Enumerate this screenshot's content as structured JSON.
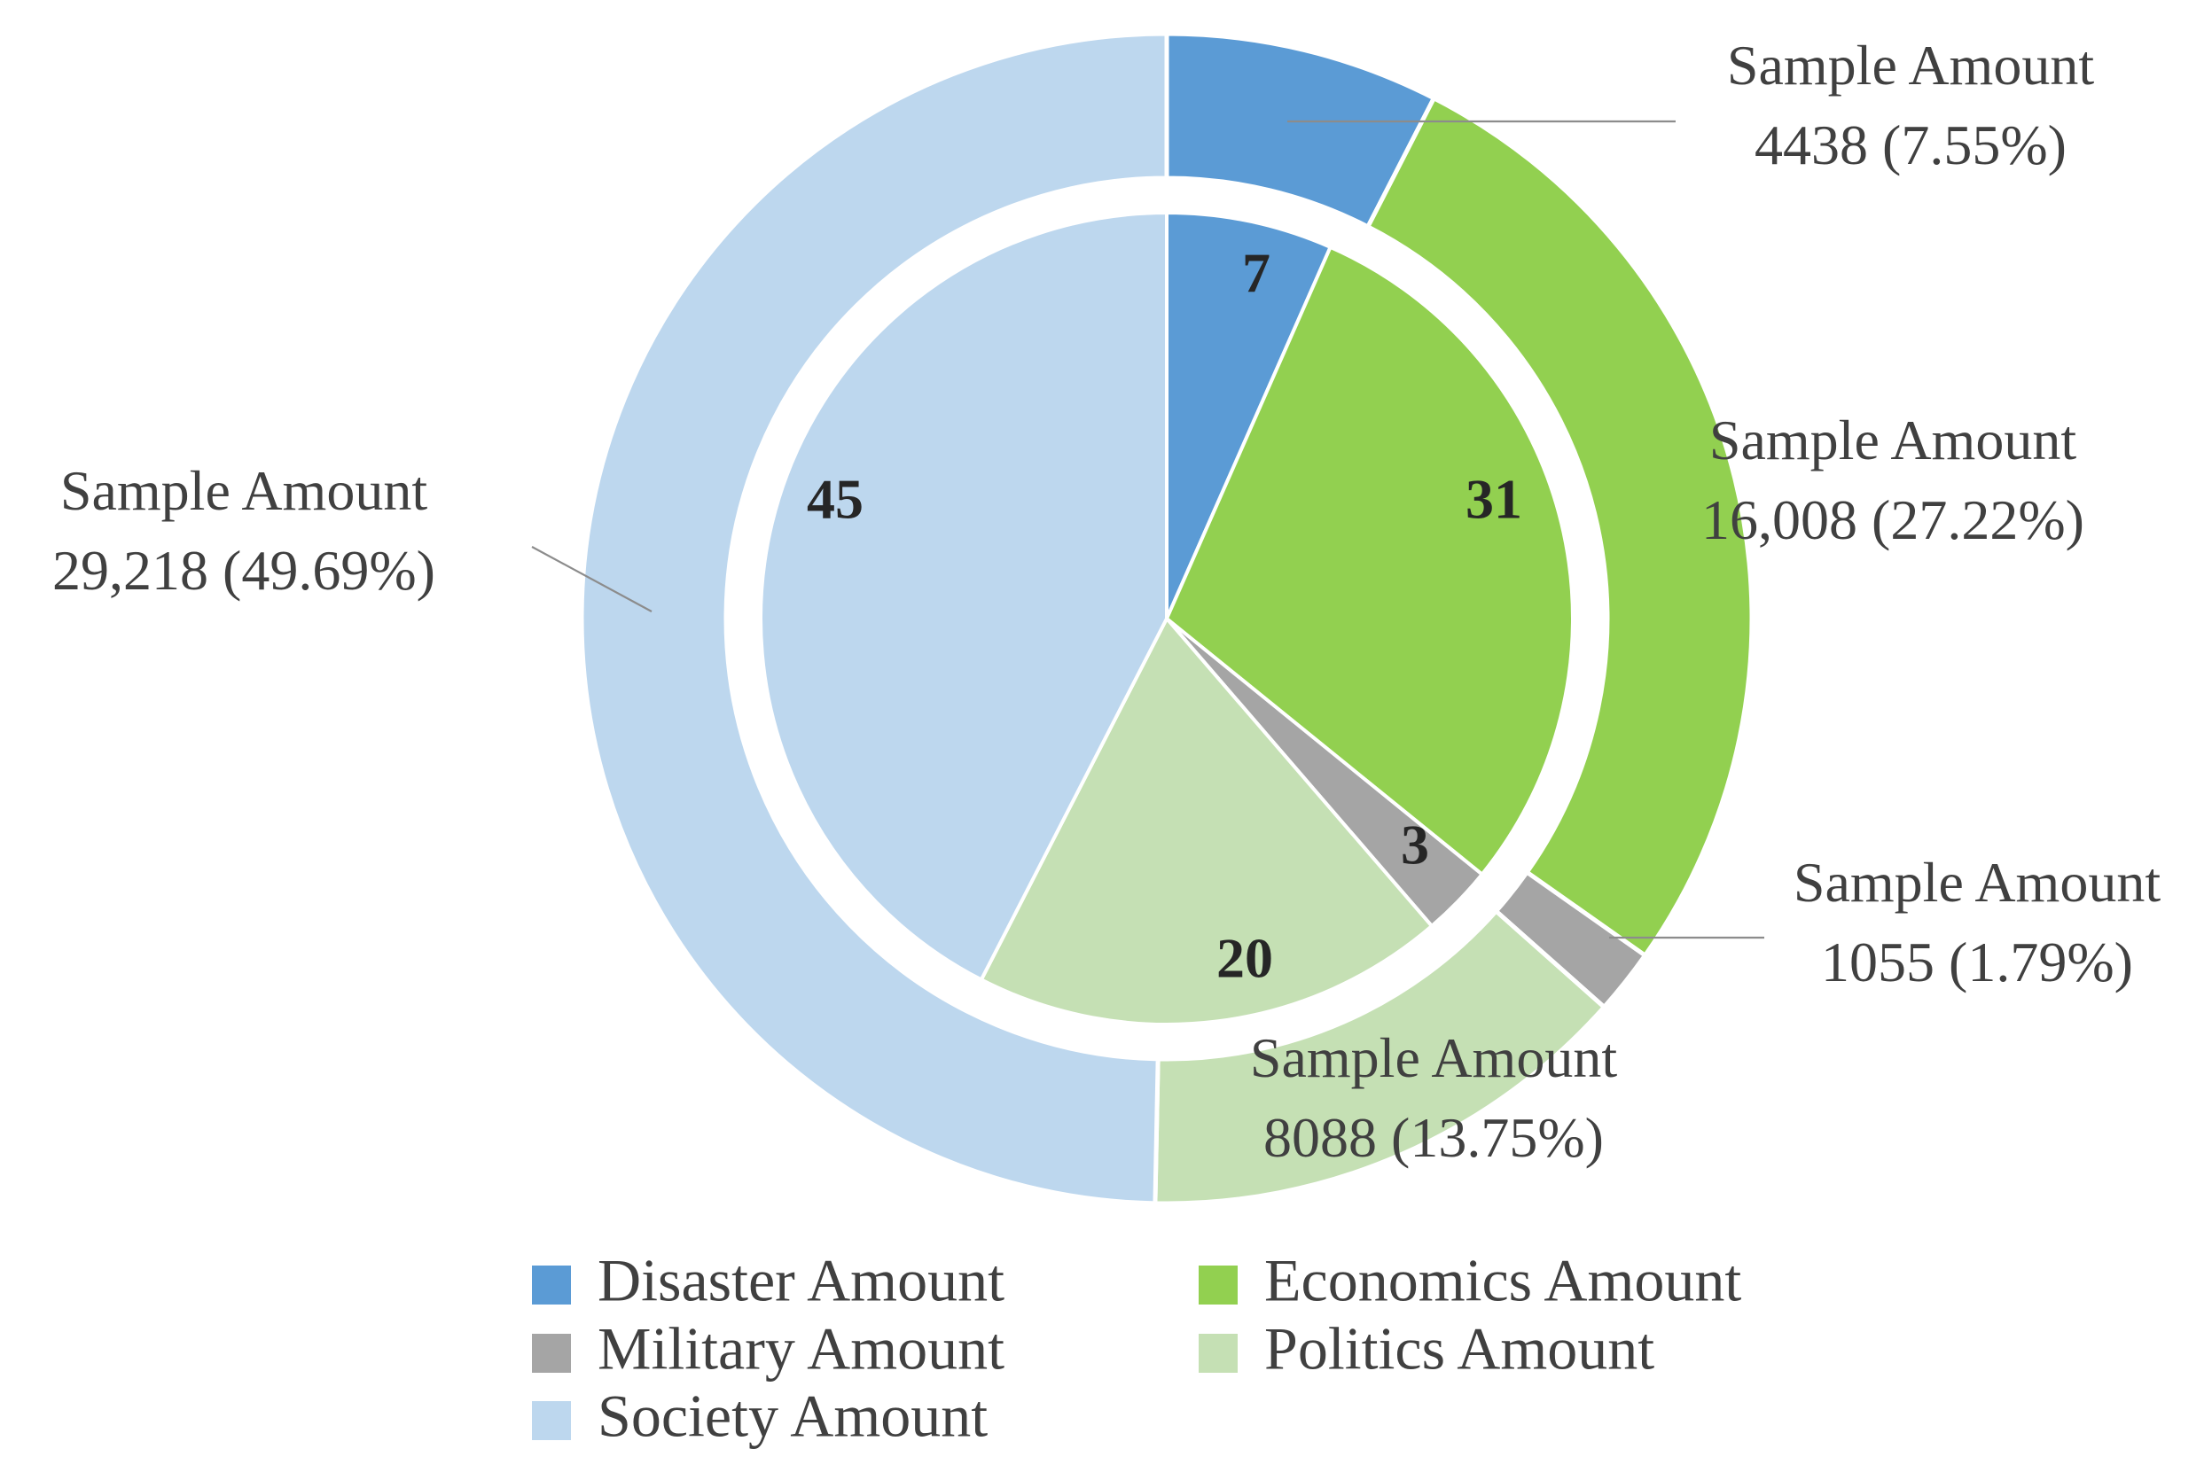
{
  "chart_data": {
    "type": "pie",
    "subtype": "nested-donut",
    "categories": [
      "Disaster Amount",
      "Economics Amount",
      "Military Amount",
      "Politics Amount",
      "Society Amount"
    ],
    "colors": [
      "#5b9bd5",
      "#92d050",
      "#a5a5a5",
      "#c5e0b4",
      "#bdd7ee"
    ],
    "series": [
      {
        "name": "Sample Amount",
        "ring": "outer",
        "values": [
          4438,
          16008,
          1055,
          8088,
          29218
        ],
        "labels": [
          {
            "line1": "Sample Amount",
            "line2": "4438 (7.55%)"
          },
          {
            "line1": "Sample Amount",
            "line2": "16,008 (27.22%)"
          },
          {
            "line1": "Sample Amount",
            "line2": "1055 (1.79%)"
          },
          {
            "line1": "Sample Amount",
            "line2": "8088 (13.75%)"
          },
          {
            "line1": "Sample Amount",
            "line2": "29,218 (49.69%)"
          }
        ]
      },
      {
        "name": "Amount",
        "ring": "inner",
        "values": [
          7,
          31,
          3,
          20,
          45
        ],
        "labels": [
          "7",
          "31",
          "3",
          "20",
          "45"
        ]
      }
    ],
    "legend": {
      "position": "bottom",
      "entries": [
        "Disaster Amount",
        "Economics Amount",
        "Military Amount",
        "Politics Amount",
        "Society Amount"
      ]
    }
  }
}
